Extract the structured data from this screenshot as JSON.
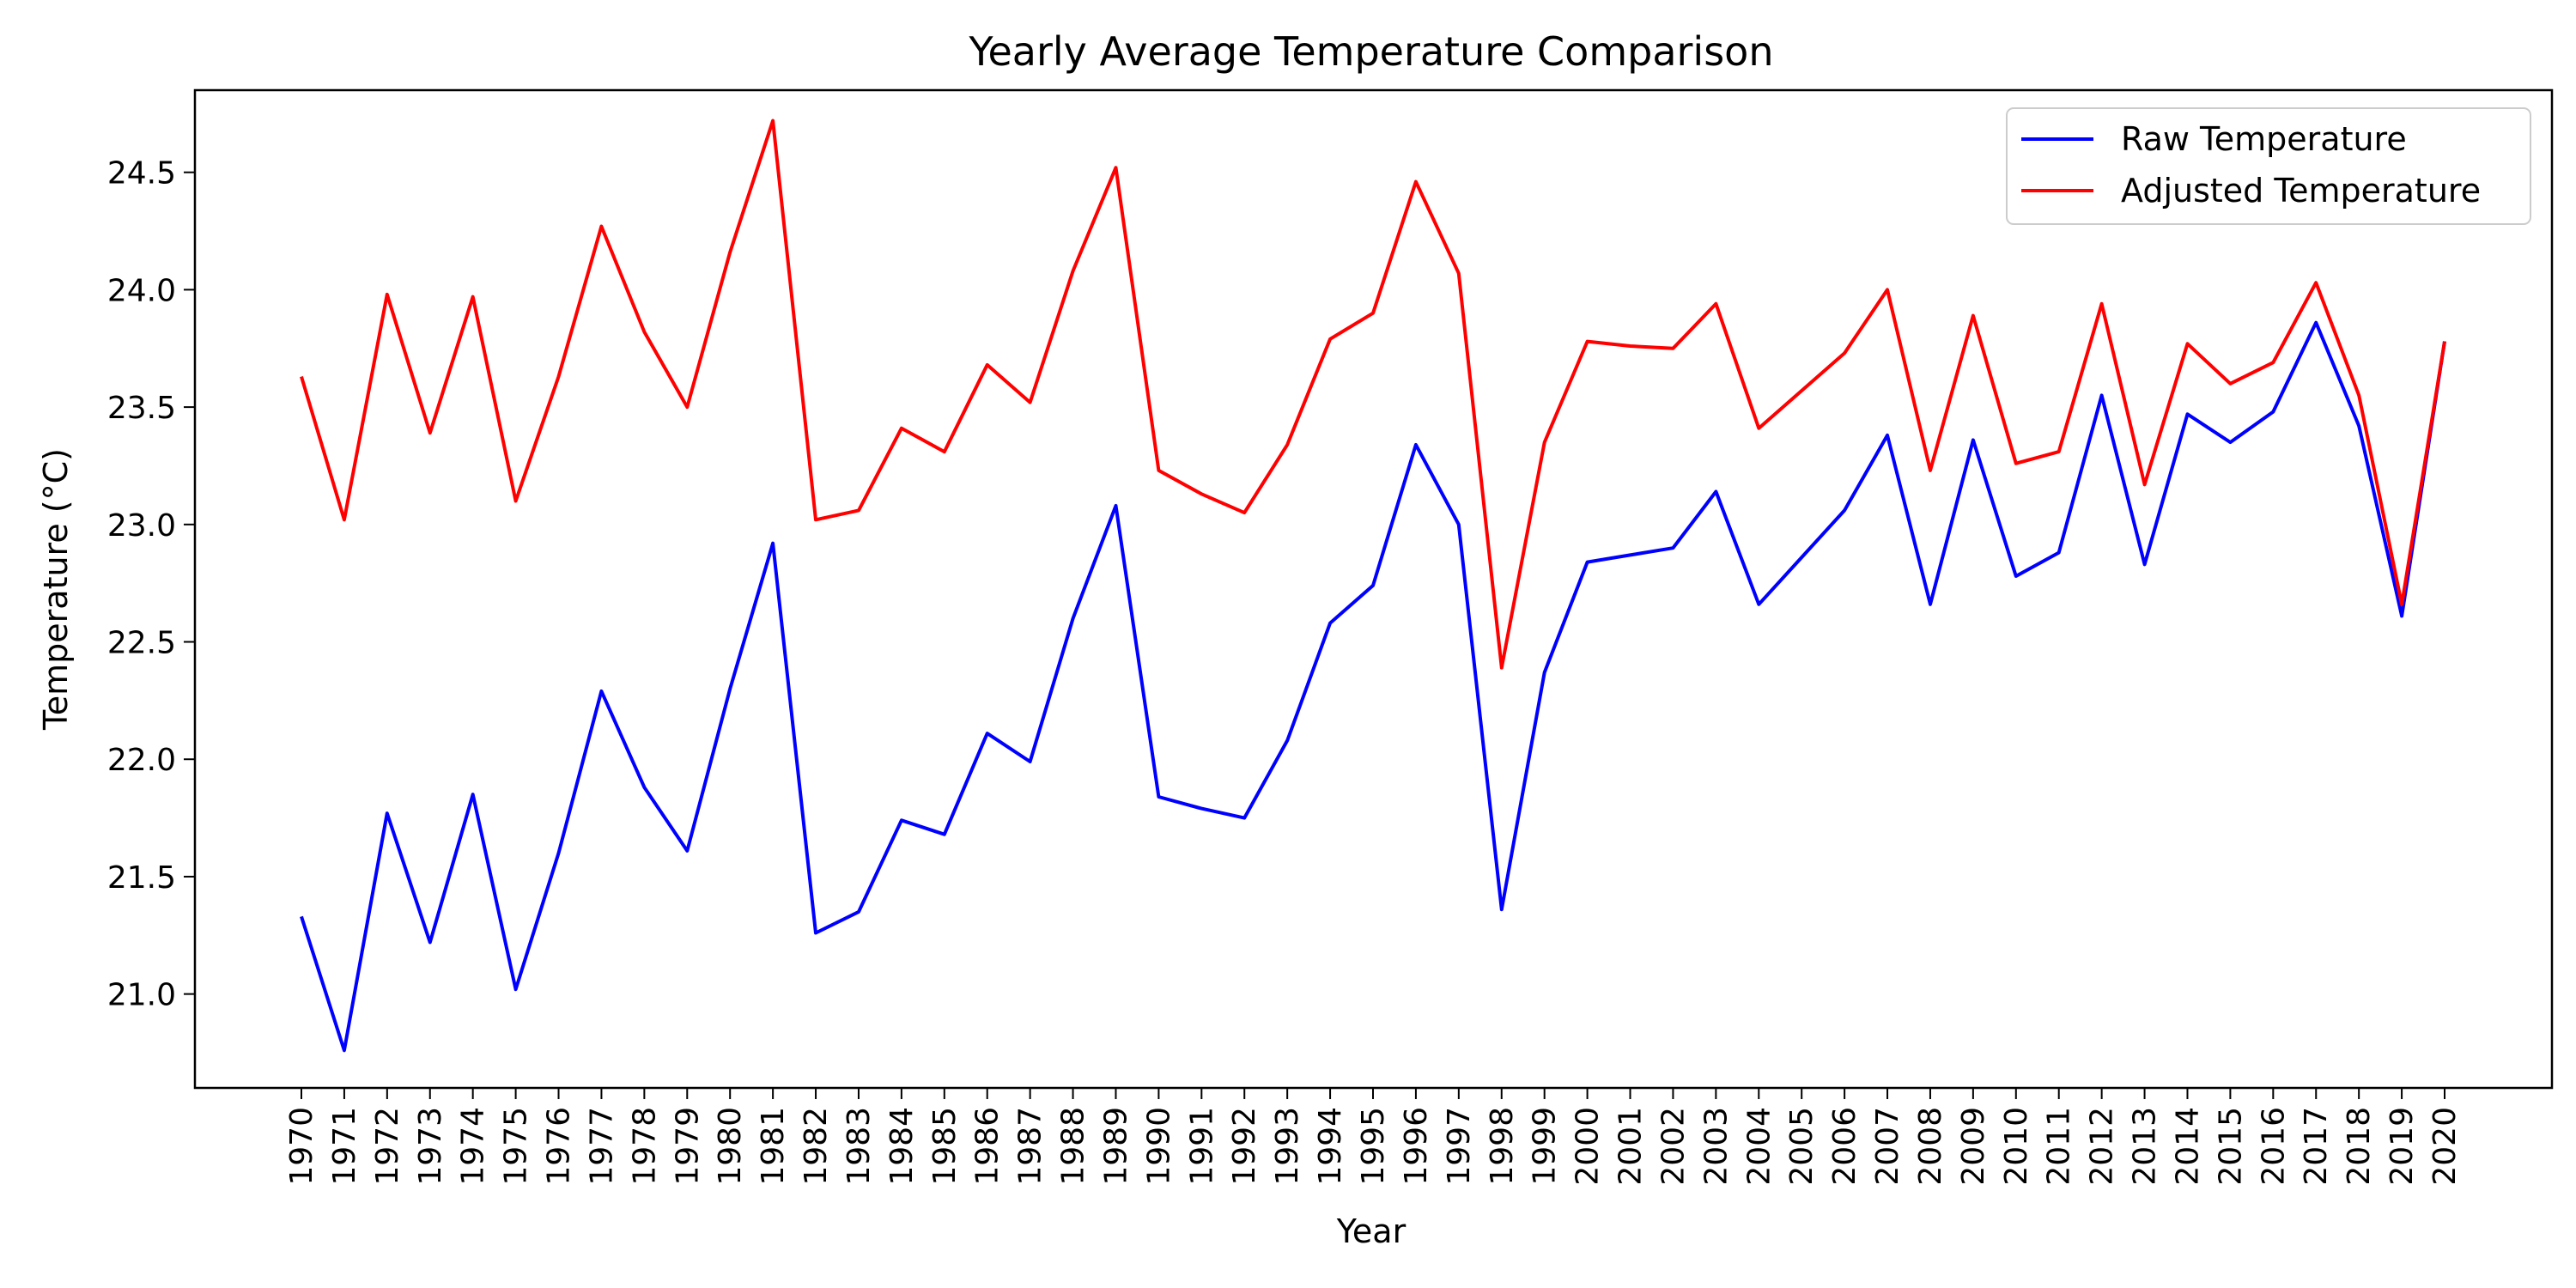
{
  "chart_data": {
    "type": "line",
    "title": "Yearly Average Temperature Comparison",
    "xlabel": "Year",
    "ylabel": "Temperature (°C)",
    "ylim": [
      20.6,
      24.85
    ],
    "yticks": [
      "21.0",
      "21.5",
      "22.0",
      "22.5",
      "23.0",
      "23.5",
      "24.0",
      "24.5"
    ],
    "grid": false,
    "legend": "top-right",
    "x": [
      "1970",
      "1971",
      "1972",
      "1973",
      "1974",
      "1975",
      "1976",
      "1977",
      "1978",
      "1979",
      "1980",
      "1981",
      "1982",
      "1983",
      "1984",
      "1985",
      "1986",
      "1987",
      "1988",
      "1989",
      "1990",
      "1991",
      "1992",
      "1993",
      "1994",
      "1995",
      "1996",
      "1997",
      "1998",
      "1999",
      "2000",
      "2001",
      "2002",
      "2003",
      "2004",
      "2005",
      "2006",
      "2007",
      "2008",
      "2009",
      "2010",
      "2011",
      "2012",
      "2013",
      "2014",
      "2015",
      "2016",
      "2017",
      "2018",
      "2019",
      "2020"
    ],
    "series": [
      {
        "name": "Raw Temperature",
        "color": "#0000ff",
        "values": [
          21.33,
          20.76,
          21.77,
          21.22,
          21.85,
          21.02,
          21.6,
          22.29,
          21.88,
          21.61,
          22.3,
          22.92,
          21.26,
          21.35,
          21.74,
          21.68,
          22.11,
          21.99,
          22.6,
          23.08,
          21.84,
          21.79,
          21.75,
          22.08,
          22.58,
          22.74,
          23.34,
          23.0,
          21.36,
          22.37,
          22.84,
          22.87,
          22.9,
          23.14,
          22.66,
          22.86,
          23.06,
          23.38,
          22.66,
          23.36,
          22.78,
          22.88,
          23.55,
          22.83,
          23.47,
          23.35,
          23.48,
          23.86,
          23.42,
          22.61,
          23.78
        ]
      },
      {
        "name": "Adjusted Temperature",
        "color": "#ff0000",
        "values": [
          23.63,
          23.02,
          23.98,
          23.39,
          23.97,
          23.1,
          23.63,
          24.27,
          23.82,
          23.5,
          24.16,
          24.72,
          23.02,
          23.06,
          23.41,
          23.31,
          23.68,
          23.52,
          24.08,
          24.52,
          23.23,
          23.13,
          23.05,
          23.34,
          23.79,
          23.9,
          24.46,
          24.07,
          22.39,
          23.35,
          23.78,
          23.76,
          23.75,
          23.94,
          23.41,
          23.57,
          23.73,
          24.0,
          23.23,
          23.89,
          23.26,
          23.31,
          23.94,
          23.17,
          23.77,
          23.6,
          23.69,
          24.03,
          23.55,
          22.66,
          23.78
        ]
      }
    ]
  }
}
